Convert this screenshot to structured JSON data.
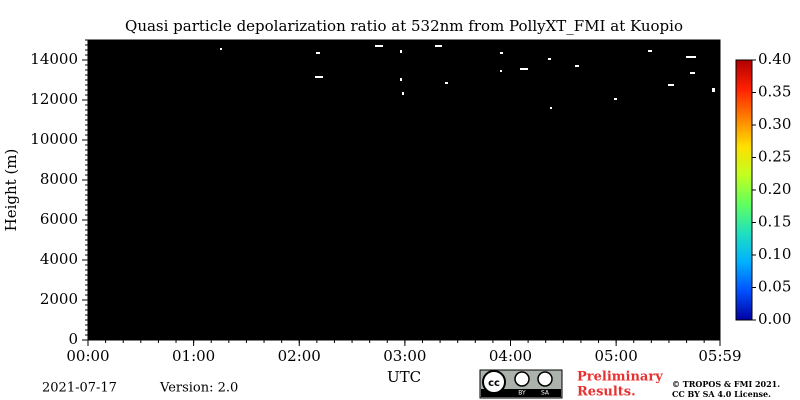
{
  "chart_data": {
    "type": "heatmap",
    "title": "Quasi particle depolarization ratio at 532nm from PollyXT_FMI at Kuopio",
    "xlabel": "UTC",
    "ylabel": "Height (m)",
    "field_color": "#000000",
    "xlim": [
      0,
      359
    ],
    "xticks": [
      {
        "value": 0,
        "label": "00:00"
      },
      {
        "value": 60,
        "label": "01:00"
      },
      {
        "value": 120,
        "label": "02:00"
      },
      {
        "value": 180,
        "label": "03:00"
      },
      {
        "value": 240,
        "label": "04:00"
      },
      {
        "value": 300,
        "label": "05:00"
      },
      {
        "value": 359,
        "label": "05:59"
      }
    ],
    "ylim": [
      0,
      15000
    ],
    "yticks": [
      0,
      2000,
      4000,
      6000,
      8000,
      10000,
      12000,
      14000
    ],
    "colorbar": {
      "lim": [
        0,
        0.4
      ],
      "colors": [
        "#0000a0",
        "#0050ff",
        "#00b0ff",
        "#20e0c0",
        "#60ff60",
        "#c0ff20",
        "#ffe000",
        "#ff8000",
        "#ff2000",
        "#b00000"
      ],
      "ticks": [
        {
          "value": 0,
          "label": "0.00"
        },
        {
          "value": 0.05,
          "label": "0.05"
        },
        {
          "value": 0.1,
          "label": "0.10"
        },
        {
          "value": 0.15,
          "label": "0.15"
        },
        {
          "value": 0.2,
          "label": "0.20"
        },
        {
          "value": 0.25,
          "label": "0.25"
        },
        {
          "value": 0.3,
          "label": "0.30"
        },
        {
          "value": 0.35,
          "label": "0.35"
        },
        {
          "value": 0.4,
          "label": "0.40"
        }
      ]
    }
  },
  "footer": {
    "date": "2021-07-17",
    "version": "Version: 2.0",
    "badge": [
      "cc",
      "BY",
      "SA"
    ],
    "notice": [
      "Preliminary",
      "Results."
    ],
    "copyright": [
      "© TROPOS & FMI 2021.",
      "CC BY SA 4.0 License."
    ]
  }
}
